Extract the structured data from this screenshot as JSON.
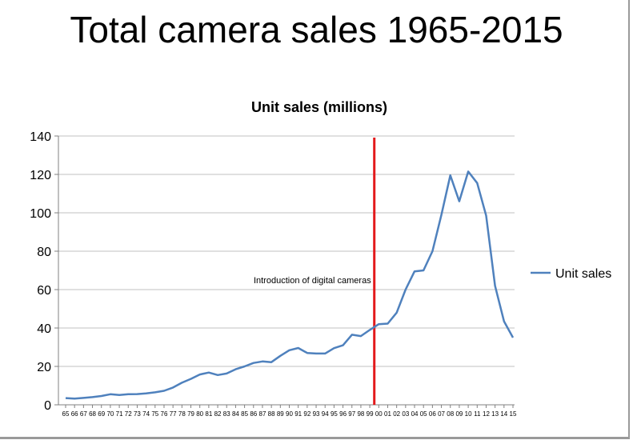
{
  "slide_title": "Total camera sales 1965-2015",
  "colors": {
    "series": "#4f81bd",
    "marker": "#e31a1c",
    "grid": "#c0c0c0",
    "axis": "#808080"
  },
  "chart_data": {
    "type": "line",
    "title": "Unit sales (millions)",
    "xlabel": "",
    "ylabel": "",
    "ylim": [
      0,
      140
    ],
    "yticks": [
      0,
      20,
      40,
      60,
      80,
      100,
      120,
      140
    ],
    "grid": true,
    "legend": "right",
    "categories": [
      "65",
      "66",
      "67",
      "68",
      "69",
      "70",
      "71",
      "72",
      "73",
      "74",
      "75",
      "76",
      "77",
      "78",
      "79",
      "80",
      "81",
      "82",
      "83",
      "84",
      "85",
      "86",
      "87",
      "88",
      "89",
      "90",
      "91",
      "92",
      "93",
      "94",
      "95",
      "96",
      "97",
      "98",
      "99",
      "00",
      "01",
      "02",
      "03",
      "04",
      "05",
      "06",
      "07",
      "08",
      "09",
      "10",
      "11",
      "12",
      "13",
      "14",
      "15"
    ],
    "series": [
      {
        "name": "Unit sales",
        "values": [
          3.5,
          3.2,
          3.6,
          4.0,
          4.6,
          5.5,
          5.1,
          5.5,
          5.6,
          5.9,
          6.5,
          7.3,
          9.0,
          11.5,
          13.5,
          15.8,
          16.8,
          15.5,
          16.3,
          18.5,
          20.0,
          21.8,
          22.6,
          22.2,
          25.5,
          28.4,
          29.6,
          27.0,
          26.7,
          26.7,
          29.5,
          31.0,
          36.5,
          35.8,
          39.0,
          42.0,
          42.3,
          48.0,
          60.0,
          69.5,
          70.0,
          80.0,
          99.0,
          119.5,
          106.0,
          121.5,
          115.5,
          98.5,
          62.0,
          43.5,
          35.0
        ]
      }
    ],
    "annotations": [
      {
        "label": "Introduction of digital cameras",
        "at_category": "99"
      }
    ]
  }
}
